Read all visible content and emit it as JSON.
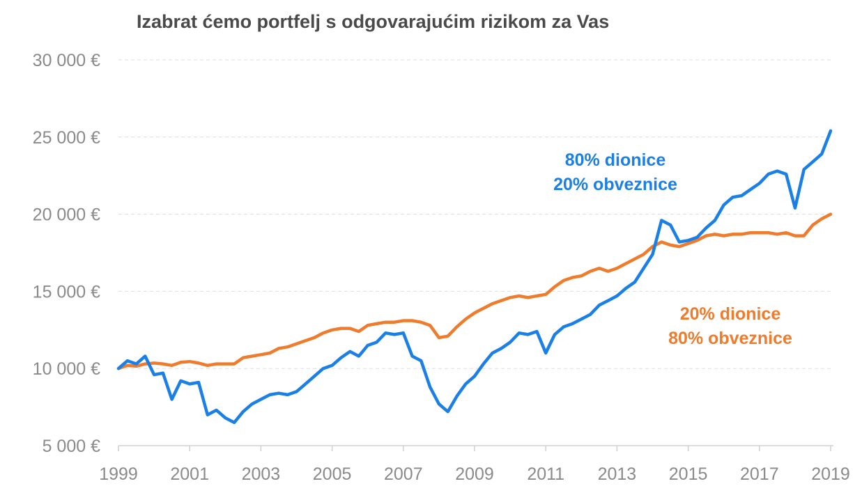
{
  "chart_data": {
    "type": "line",
    "title": "Izabrat ćemo portfelj s odgovarajućim rizikom za Vas",
    "xlabel": "",
    "ylabel": "",
    "xlim": [
      1999,
      2019
    ],
    "ylim": [
      5000,
      30000
    ],
    "y_ticks": [
      5000,
      10000,
      15000,
      20000,
      25000,
      30000
    ],
    "y_tick_labels": [
      "5 000 €",
      "10 000 €",
      "15 000 €",
      "20 000 €",
      "25 000 €",
      "30 000 €"
    ],
    "x_ticks": [
      "1999",
      "2001",
      "2003",
      "2005",
      "2007",
      "2009",
      "2011",
      "2013",
      "2015",
      "2017",
      "2019"
    ],
    "grid": "horizontal-dashed",
    "series": [
      {
        "name": "80% dionice / 20% obveznice",
        "label_lines": [
          "80% dionice",
          "20% obveznice"
        ],
        "color": "#1a7fe6",
        "x": [
          1999.0,
          1999.25,
          1999.5,
          1999.75,
          2000.0,
          2000.25,
          2000.5,
          2000.75,
          2001.0,
          2001.25,
          2001.5,
          2001.75,
          2002.0,
          2002.25,
          2002.5,
          2002.75,
          2003.0,
          2003.25,
          2003.5,
          2003.75,
          2004.0,
          2004.25,
          2004.5,
          2004.75,
          2005.0,
          2005.25,
          2005.5,
          2005.75,
          2006.0,
          2006.25,
          2006.5,
          2006.75,
          2007.0,
          2007.25,
          2007.5,
          2007.75,
          2008.0,
          2008.25,
          2008.5,
          2008.75,
          2009.0,
          2009.25,
          2009.5,
          2009.75,
          2010.0,
          2010.25,
          2010.5,
          2010.75,
          2011.0,
          2011.25,
          2011.5,
          2011.75,
          2012.0,
          2012.25,
          2012.5,
          2012.75,
          2013.0,
          2013.25,
          2013.5,
          2013.75,
          2014.0,
          2014.25,
          2014.5,
          2014.75,
          2015.0,
          2015.25,
          2015.5,
          2015.75,
          2016.0,
          2016.25,
          2016.5,
          2016.75,
          2017.0,
          2017.25,
          2017.5,
          2017.75,
          2018.0,
          2018.25,
          2018.5,
          2018.75,
          2019.0
        ],
        "values": [
          10000,
          10500,
          10300,
          10800,
          9600,
          9700,
          8000,
          9200,
          9000,
          9100,
          7000,
          7300,
          6800,
          6500,
          7200,
          7700,
          8000,
          8300,
          8400,
          8300,
          8500,
          9000,
          9500,
          10000,
          10200,
          10700,
          11100,
          10800,
          11500,
          11700,
          12300,
          12200,
          12300,
          10800,
          10500,
          8800,
          7700,
          7200,
          8200,
          9000,
          9500,
          10300,
          11000,
          11300,
          11700,
          12300,
          12200,
          12400,
          11000,
          12200,
          12700,
          12900,
          13200,
          13500,
          14100,
          14400,
          14700,
          15200,
          15600,
          16500,
          17400,
          19600,
          19300,
          18200,
          18300,
          18500,
          19100,
          19600,
          20600,
          21100,
          21200,
          21600,
          22000,
          22600,
          22800,
          22600,
          20400,
          22900,
          23400,
          23900,
          25400
        ]
      },
      {
        "name": "20% dionice / 80% obveznice",
        "label_lines": [
          "20% dionice",
          "80% obveznice"
        ],
        "color": "#ef7b2d",
        "x": [
          1999.0,
          1999.25,
          1999.5,
          1999.75,
          2000.0,
          2000.25,
          2000.5,
          2000.75,
          2001.0,
          2001.25,
          2001.5,
          2001.75,
          2002.0,
          2002.25,
          2002.5,
          2002.75,
          2003.0,
          2003.25,
          2003.5,
          2003.75,
          2004.0,
          2004.25,
          2004.5,
          2004.75,
          2005.0,
          2005.25,
          2005.5,
          2005.75,
          2006.0,
          2006.25,
          2006.5,
          2006.75,
          2007.0,
          2007.25,
          2007.5,
          2007.75,
          2008.0,
          2008.25,
          2008.5,
          2008.75,
          2009.0,
          2009.25,
          2009.5,
          2009.75,
          2010.0,
          2010.25,
          2010.5,
          2010.75,
          2011.0,
          2011.25,
          2011.5,
          2011.75,
          2012.0,
          2012.25,
          2012.5,
          2012.75,
          2013.0,
          2013.25,
          2013.5,
          2013.75,
          2014.0,
          2014.25,
          2014.5,
          2014.75,
          2015.0,
          2015.25,
          2015.5,
          2015.75,
          2016.0,
          2016.25,
          2016.5,
          2016.75,
          2017.0,
          2017.25,
          2017.5,
          2017.75,
          2018.0,
          2018.25,
          2018.5,
          2018.75,
          2019.0
        ],
        "values": [
          10000,
          10200,
          10150,
          10300,
          10350,
          10300,
          10200,
          10400,
          10450,
          10350,
          10200,
          10300,
          10300,
          10300,
          10700,
          10800,
          10900,
          11000,
          11300,
          11400,
          11600,
          11800,
          12000,
          12300,
          12500,
          12600,
          12600,
          12400,
          12800,
          12900,
          13000,
          13000,
          13100,
          13100,
          13000,
          12800,
          12000,
          12100,
          12700,
          13200,
          13600,
          13900,
          14200,
          14400,
          14600,
          14700,
          14600,
          14700,
          14800,
          15300,
          15700,
          15900,
          16000,
          16300,
          16500,
          16300,
          16500,
          16800,
          17100,
          17400,
          17900,
          18200,
          18000,
          17900,
          18100,
          18300,
          18600,
          18700,
          18600,
          18700,
          18700,
          18800,
          18800,
          18800,
          18700,
          18800,
          18600,
          18600,
          19300,
          19700,
          20000
        ]
      }
    ]
  }
}
